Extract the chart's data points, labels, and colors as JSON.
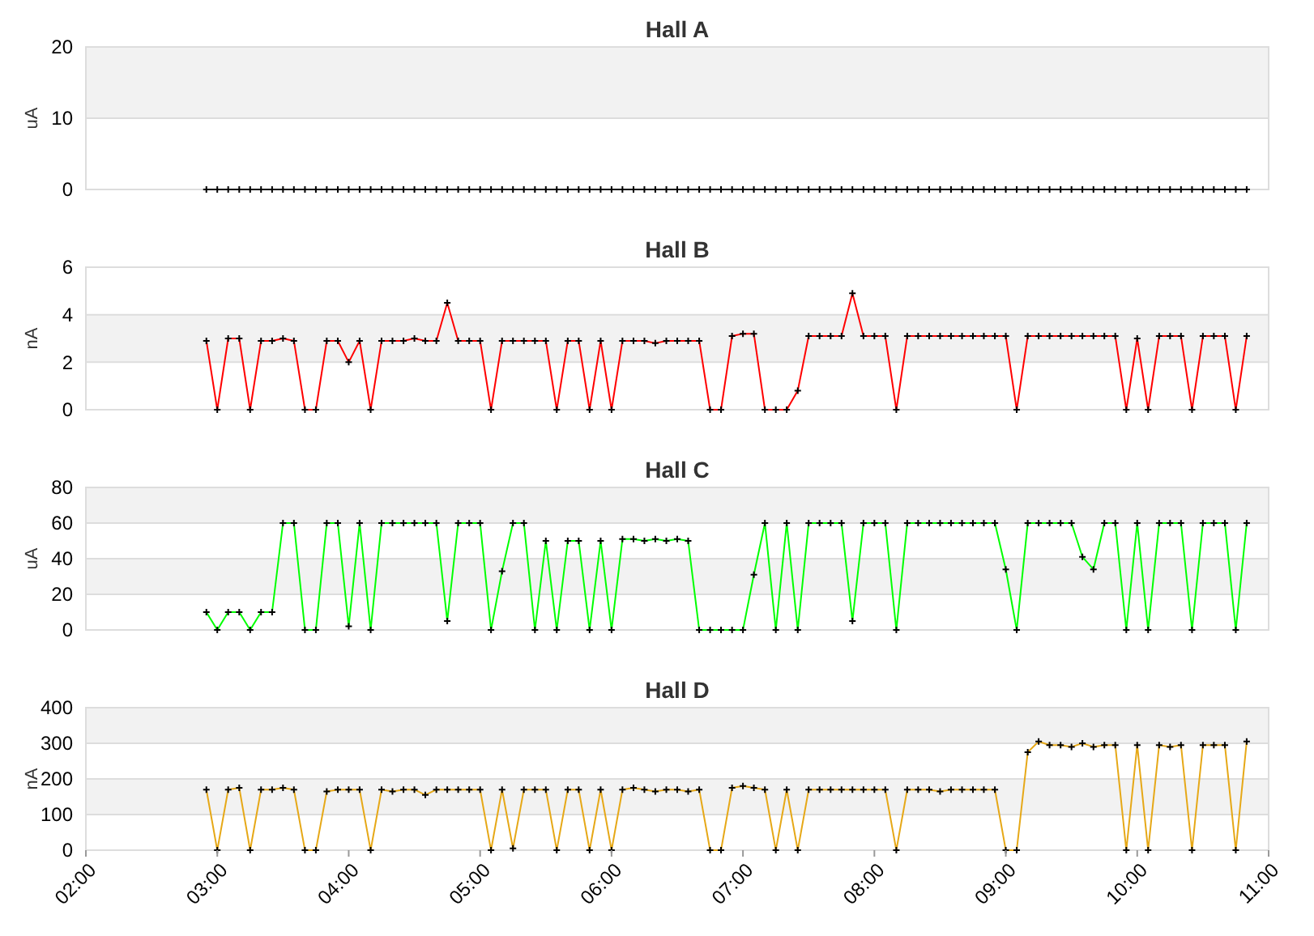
{
  "chart_data": [
    {
      "type": "line",
      "title": "Hall A",
      "ylabel": "uA",
      "color": "#000000",
      "marker": "cross",
      "grid": "y",
      "tick_labels": "y",
      "xlim": [
        2,
        11
      ],
      "ylim": [
        0,
        20
      ],
      "yticks": [
        0,
        10,
        20
      ],
      "bands": [
        {
          "axis": "y",
          "from": 10,
          "to": 20,
          "color": "#f2f2f2"
        }
      ],
      "x": [
        2.917,
        3,
        3.083,
        3.167,
        3.25,
        3.333,
        3.417,
        3.5,
        3.583,
        3.667,
        3.75,
        3.833,
        3.917,
        4,
        4.083,
        4.167,
        4.25,
        4.333,
        4.417,
        4.5,
        4.583,
        4.667,
        4.75,
        4.833,
        4.917,
        5,
        5.083,
        5.167,
        5.25,
        5.333,
        5.417,
        5.5,
        5.583,
        5.667,
        5.75,
        5.833,
        5.917,
        6,
        6.083,
        6.167,
        6.25,
        6.333,
        6.417,
        6.5,
        6.583,
        6.667,
        6.75,
        6.833,
        6.917,
        7,
        7.083,
        7.167,
        7.25,
        7.333,
        7.417,
        7.5,
        7.583,
        7.667,
        7.75,
        7.833,
        7.917,
        8,
        8.083,
        8.167,
        8.25,
        8.333,
        8.417,
        8.5,
        8.583,
        8.667,
        8.75,
        8.833,
        8.917,
        9,
        9.083,
        9.167,
        9.25,
        9.333,
        9.417,
        9.5,
        9.583,
        9.667,
        9.75,
        9.833,
        9.917,
        10,
        10.083,
        10.167,
        10.25,
        10.333,
        10.417,
        10.5,
        10.583,
        10.667,
        10.75,
        10.833
      ],
      "values": [
        0,
        0,
        0,
        0,
        0,
        0,
        0,
        0,
        0,
        0,
        0,
        0,
        0,
        0,
        0,
        0,
        0,
        0,
        0,
        0,
        0,
        0,
        0,
        0,
        0,
        0,
        0,
        0,
        0,
        0,
        0,
        0,
        0,
        0,
        0,
        0,
        0,
        0,
        0,
        0,
        0,
        0,
        0,
        0,
        0,
        0,
        0,
        0,
        0,
        0,
        0,
        0,
        0,
        0,
        0,
        0,
        0,
        0,
        0,
        0,
        0,
        0,
        0,
        0,
        0,
        0,
        0,
        0,
        0,
        0,
        0,
        0,
        0,
        0,
        0,
        0,
        0,
        0,
        0,
        0,
        0,
        0,
        0,
        0,
        0,
        0,
        0,
        0,
        0,
        0,
        0,
        0,
        0,
        0,
        0,
        0
      ]
    },
    {
      "type": "line",
      "title": "Hall B",
      "ylabel": "nA",
      "color": "#ff0000",
      "marker": "cross",
      "grid": "y",
      "tick_labels": "y",
      "xlim": [
        2,
        11
      ],
      "ylim": [
        0,
        6
      ],
      "yticks": [
        0,
        2,
        4,
        6
      ],
      "bands": [
        {
          "axis": "y",
          "from": 2,
          "to": 4,
          "color": "#f2f2f2"
        }
      ],
      "x": [
        2.917,
        3,
        3.083,
        3.167,
        3.25,
        3.333,
        3.417,
        3.5,
        3.583,
        3.667,
        3.75,
        3.833,
        3.917,
        4,
        4.083,
        4.167,
        4.25,
        4.333,
        4.417,
        4.5,
        4.583,
        4.667,
        4.75,
        4.833,
        4.917,
        5,
        5.083,
        5.167,
        5.25,
        5.333,
        5.417,
        5.5,
        5.583,
        5.667,
        5.75,
        5.833,
        5.917,
        6,
        6.083,
        6.167,
        6.25,
        6.333,
        6.417,
        6.5,
        6.583,
        6.667,
        6.75,
        6.833,
        6.917,
        7,
        7.083,
        7.167,
        7.25,
        7.333,
        7.417,
        7.5,
        7.583,
        7.667,
        7.75,
        7.833,
        7.917,
        8,
        8.083,
        8.167,
        8.25,
        8.333,
        8.417,
        8.5,
        8.583,
        8.667,
        8.75,
        8.833,
        8.917,
        9,
        9.083,
        9.167,
        9.25,
        9.333,
        9.417,
        9.5,
        9.583,
        9.667,
        9.75,
        9.833,
        9.917,
        10,
        10.083,
        10.167,
        10.25,
        10.333,
        10.417,
        10.5,
        10.583,
        10.667,
        10.75,
        10.833
      ],
      "values": [
        2.9,
        0,
        3,
        3,
        0,
        2.9,
        2.9,
        3,
        2.9,
        0,
        0,
        2.9,
        2.9,
        2,
        2.9,
        0,
        2.9,
        2.9,
        2.9,
        3,
        2.9,
        2.9,
        4.5,
        2.9,
        2.9,
        2.9,
        0,
        2.9,
        2.9,
        2.9,
        2.9,
        2.9,
        0,
        2.9,
        2.9,
        0,
        2.9,
        0,
        2.9,
        2.9,
        2.9,
        2.8,
        2.9,
        2.9,
        2.9,
        2.9,
        0,
        0,
        3.1,
        3.2,
        3.2,
        0,
        0,
        0,
        0.8,
        3.1,
        3.1,
        3.1,
        3.1,
        4.9,
        3.1,
        3.1,
        3.1,
        0,
        3.1,
        3.1,
        3.1,
        3.1,
        3.1,
        3.1,
        3.1,
        3.1,
        3.1,
        3.1,
        0,
        3.1,
        3.1,
        3.1,
        3.1,
        3.1,
        3.1,
        3.1,
        3.1,
        3.1,
        0,
        3,
        0,
        3.1,
        3.1,
        3.1,
        0,
        3.1,
        3.1,
        3.1,
        0,
        3.1
      ]
    },
    {
      "type": "line",
      "title": "Hall C",
      "ylabel": "uA",
      "color": "#00ff00",
      "marker": "cross",
      "grid": "y",
      "tick_labels": "y",
      "xlim": [
        2,
        11
      ],
      "ylim": [
        0,
        80
      ],
      "yticks": [
        0,
        20,
        40,
        60,
        80
      ],
      "bands": [
        {
          "axis": "y",
          "from": 20,
          "to": 40,
          "color": "#f2f2f2"
        },
        {
          "axis": "y",
          "from": 60,
          "to": 80,
          "color": "#f2f2f2"
        }
      ],
      "x": [
        2.917,
        3,
        3.083,
        3.167,
        3.25,
        3.333,
        3.417,
        3.5,
        3.583,
        3.667,
        3.75,
        3.833,
        3.917,
        4,
        4.083,
        4.167,
        4.25,
        4.333,
        4.417,
        4.5,
        4.583,
        4.667,
        4.75,
        4.833,
        4.917,
        5,
        5.083,
        5.167,
        5.25,
        5.333,
        5.417,
        5.5,
        5.583,
        5.667,
        5.75,
        5.833,
        5.917,
        6,
        6.083,
        6.167,
        6.25,
        6.333,
        6.417,
        6.5,
        6.583,
        6.667,
        6.75,
        6.833,
        6.917,
        7,
        7.083,
        7.167,
        7.25,
        7.333,
        7.417,
        7.5,
        7.583,
        7.667,
        7.75,
        7.833,
        7.917,
        8,
        8.083,
        8.167,
        8.25,
        8.333,
        8.417,
        8.5,
        8.583,
        8.667,
        8.75,
        8.833,
        8.917,
        9,
        9.083,
        9.167,
        9.25,
        9.333,
        9.417,
        9.5,
        9.583,
        9.667,
        9.75,
        9.833,
        9.917,
        10,
        10.083,
        10.167,
        10.25,
        10.333,
        10.417,
        10.5,
        10.583,
        10.667,
        10.75,
        10.833
      ],
      "values": [
        10,
        0,
        10,
        10,
        0,
        10,
        10,
        60,
        60,
        0,
        0,
        60,
        60,
        2,
        60,
        0,
        60,
        60,
        60,
        60,
        60,
        60,
        5,
        60,
        60,
        60,
        0,
        33,
        60,
        60,
        0,
        50,
        0,
        50,
        50,
        0,
        50,
        0,
        51,
        51,
        50,
        51,
        50,
        51,
        50,
        0,
        0,
        0,
        0,
        0,
        31,
        60,
        0,
        60,
        0,
        60,
        60,
        60,
        60,
        5,
        60,
        60,
        60,
        0,
        60,
        60,
        60,
        60,
        60,
        60,
        60,
        60,
        60,
        34,
        0,
        60,
        60,
        60,
        60,
        60,
        41,
        34,
        60,
        60,
        0,
        60,
        0,
        60,
        60,
        60,
        0,
        60,
        60,
        60,
        0,
        60
      ]
    },
    {
      "type": "line",
      "title": "Hall D",
      "ylabel": "nA",
      "color": "#e6a817",
      "marker": "cross",
      "grid": "y",
      "xlim": [
        2,
        11
      ],
      "ylim": [
        0,
        400
      ],
      "yticks": [
        0,
        100,
        200,
        300,
        400
      ],
      "bands": [
        {
          "axis": "y",
          "from": 100,
          "to": 200,
          "color": "#f2f2f2"
        },
        {
          "axis": "y",
          "from": 300,
          "to": 400,
          "color": "#f2f2f2"
        }
      ],
      "xticks": [
        {
          "value": 2,
          "label": "02:00"
        },
        {
          "value": 3,
          "label": "03:00"
        },
        {
          "value": 4,
          "label": "04:00"
        },
        {
          "value": 5,
          "label": "05:00"
        },
        {
          "value": 6,
          "label": "06:00"
        },
        {
          "value": 7,
          "label": "07:00"
        },
        {
          "value": 8,
          "label": "08:00"
        },
        {
          "value": 9,
          "label": "09:00"
        },
        {
          "value": 10,
          "label": "10:00"
        },
        {
          "value": 11,
          "label": "11:00"
        }
      ],
      "x": [
        2.917,
        3,
        3.083,
        3.167,
        3.25,
        3.333,
        3.417,
        3.5,
        3.583,
        3.667,
        3.75,
        3.833,
        3.917,
        4,
        4.083,
        4.167,
        4.25,
        4.333,
        4.417,
        4.5,
        4.583,
        4.667,
        4.75,
        4.833,
        4.917,
        5,
        5.083,
        5.167,
        5.25,
        5.333,
        5.417,
        5.5,
        5.583,
        5.667,
        5.75,
        5.833,
        5.917,
        6,
        6.083,
        6.167,
        6.25,
        6.333,
        6.417,
        6.5,
        6.583,
        6.667,
        6.75,
        6.833,
        6.917,
        7,
        7.083,
        7.167,
        7.25,
        7.333,
        7.417,
        7.5,
        7.583,
        7.667,
        7.75,
        7.833,
        7.917,
        8,
        8.083,
        8.167,
        8.25,
        8.333,
        8.417,
        8.5,
        8.583,
        8.667,
        8.75,
        8.833,
        8.917,
        9,
        9.083,
        9.167,
        9.25,
        9.333,
        9.417,
        9.5,
        9.583,
        9.667,
        9.75,
        9.833,
        9.917,
        10,
        10.083,
        10.167,
        10.25,
        10.333,
        10.417,
        10.5,
        10.583,
        10.667,
        10.75,
        10.833
      ],
      "values": [
        170,
        0,
        170,
        175,
        0,
        170,
        170,
        175,
        170,
        0,
        0,
        165,
        170,
        170,
        170,
        0,
        170,
        165,
        170,
        170,
        155,
        170,
        170,
        170,
        170,
        170,
        0,
        170,
        5,
        170,
        170,
        170,
        0,
        170,
        170,
        0,
        170,
        0,
        170,
        175,
        170,
        165,
        170,
        170,
        165,
        170,
        0,
        0,
        175,
        180,
        175,
        170,
        0,
        170,
        0,
        170,
        170,
        170,
        170,
        170,
        170,
        170,
        170,
        0,
        170,
        170,
        170,
        165,
        170,
        170,
        170,
        170,
        170,
        0,
        0,
        275,
        305,
        295,
        295,
        290,
        300,
        290,
        295,
        295,
        0,
        295,
        0,
        295,
        290,
        295,
        0,
        295,
        295,
        295,
        0,
        305
      ]
    }
  ]
}
